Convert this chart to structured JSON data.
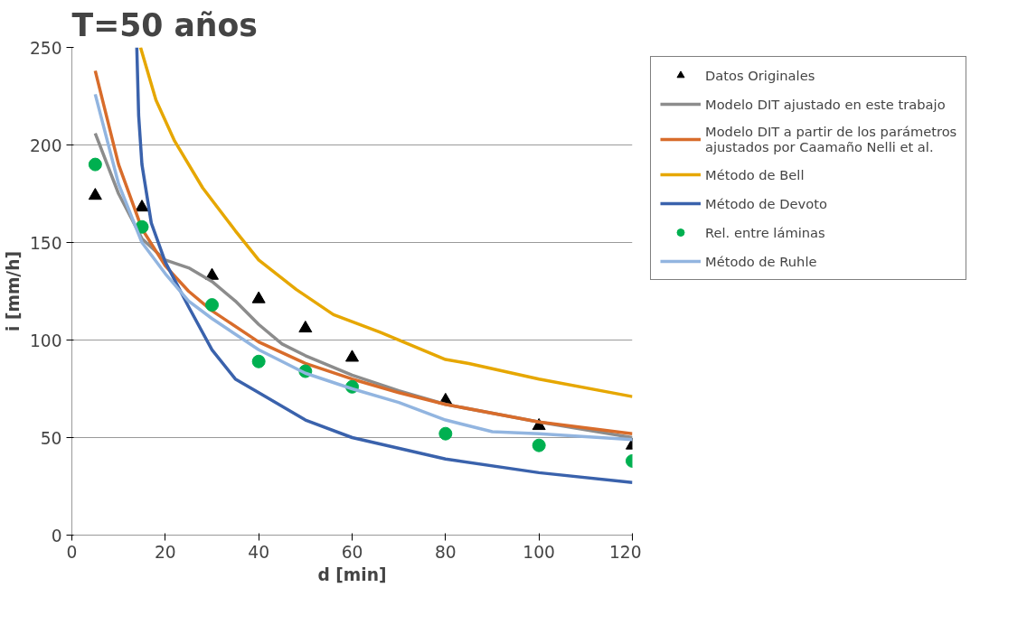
{
  "chart_data": {
    "type": "line",
    "title": "T=50 años",
    "xlabel": "d [min]",
    "ylabel": "i [mm/h]",
    "xlim": [
      0,
      120
    ],
    "xticks": [
      0,
      20,
      40,
      60,
      80,
      100,
      120
    ],
    "ylim": [
      0,
      250
    ],
    "yticks": [
      0,
      50,
      100,
      150,
      200,
      250
    ],
    "grid": "y",
    "legend": "right",
    "line_style": "solid",
    "series": [
      {
        "name": "Datos Originales",
        "type": "scatter",
        "marker": "triangle",
        "color": "#000000",
        "x": [
          5,
          15,
          30,
          40,
          50,
          60,
          80,
          100,
          120
        ],
        "values": [
          174,
          168,
          133,
          121,
          106,
          91,
          69,
          56,
          46
        ]
      },
      {
        "name": "Modelo DIT ajustado en este trabajo",
        "color": "#8c8c8c",
        "x": [
          5,
          10,
          15,
          20,
          25,
          30,
          35,
          40,
          45,
          50,
          60,
          70,
          80,
          100,
          120
        ],
        "values": [
          206,
          175,
          152,
          141,
          137,
          130,
          120,
          108,
          98,
          92,
          82,
          74,
          67,
          58,
          50
        ]
      },
      {
        "name": "Modelo DIT a partir de los parámetros ajustados por Caamaño Nelli et al.",
        "color": "#d86c2b",
        "x": [
          5,
          10,
          15,
          20,
          25,
          30,
          40,
          50,
          60,
          70,
          80,
          100,
          120
        ],
        "values": [
          238,
          190,
          157,
          138,
          125,
          115,
          99,
          88,
          80,
          73,
          67,
          58,
          52
        ]
      },
      {
        "name": "Método de Bell",
        "color": "#e6a700",
        "x": [
          14.7,
          18,
          22,
          28,
          35,
          40,
          48,
          56,
          66,
          80,
          85,
          100,
          120
        ],
        "values": [
          250,
          223,
          202,
          178,
          156,
          141,
          126,
          113,
          104,
          90,
          88,
          80,
          71
        ]
      },
      {
        "name": "Método de Devoto",
        "color": "#3a62ac",
        "x": [
          13.9,
          14.3,
          15,
          17,
          20,
          25,
          30,
          35,
          40,
          50,
          60,
          80,
          100,
          120
        ],
        "values": [
          250,
          215,
          190,
          160,
          140,
          117,
          95,
          80,
          73,
          59,
          50,
          39,
          32,
          27
        ]
      },
      {
        "name": "Rel. entre láminas",
        "type": "scatter",
        "marker": "circle",
        "color": "#00b050",
        "x": [
          5,
          15,
          30,
          40,
          50,
          60,
          80,
          100,
          120
        ],
        "values": [
          190,
          158,
          118,
          89,
          84,
          76,
          52,
          46,
          38
        ]
      },
      {
        "name": "Método de Ruhle",
        "color": "#92b5e0",
        "x": [
          5,
          10,
          15,
          20,
          25,
          30,
          40,
          50,
          60,
          70,
          80,
          90,
          100,
          120
        ],
        "values": [
          226,
          180,
          150,
          134,
          120,
          111,
          95,
          83,
          75,
          68,
          59,
          53,
          52,
          49
        ]
      }
    ]
  }
}
